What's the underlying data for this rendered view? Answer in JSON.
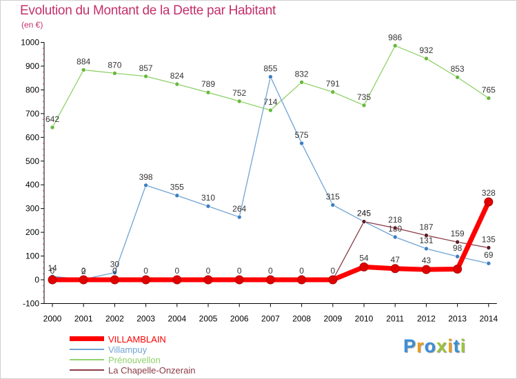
{
  "chart_data": {
    "type": "line",
    "title": "Evolution du Montant de la Dette par Habitant",
    "unit_label": "(en €)",
    "x": [
      "2000",
      "2001",
      "2002",
      "2003",
      "2004",
      "2005",
      "2006",
      "2007",
      "2008",
      "2009",
      "2010",
      "2011",
      "2012",
      "2013",
      "2014"
    ],
    "ylim": [
      -100,
      1000
    ],
    "yticks": [
      -100,
      0,
      100,
      200,
      300,
      400,
      500,
      600,
      700,
      800,
      900,
      1000
    ],
    "grid": false,
    "legend_position": "bottom-left",
    "series": [
      {
        "name": "Prénouvellon",
        "color": "#8fd16a",
        "marker": "#68b83c",
        "values": [
          642,
          884,
          870,
          857,
          824,
          789,
          752,
          714,
          832,
          791,
          735,
          986,
          932,
          853,
          765
        ],
        "labels": [
          "642",
          "884",
          "870",
          "857",
          "824",
          "789",
          "752",
          "714",
          "832",
          "791",
          "735",
          "986",
          "932",
          "853",
          "765"
        ]
      },
      {
        "name": "Villampuy",
        "color": "#6fa3d4",
        "marker": "#3c7fc1",
        "values": [
          14,
          2,
          30,
          398,
          355,
          310,
          264,
          855,
          575,
          315,
          245,
          180,
          131,
          98,
          69
        ],
        "segments": [
          [
            0,
            6
          ],
          [
            6,
            14
          ]
        ],
        "labels": [
          "14",
          "2",
          "30",
          "398",
          "355",
          "310",
          "264",
          "855",
          "575",
          "315",
          "245",
          "180",
          "131",
          "98",
          "69"
        ]
      },
      {
        "name": "La Chapelle-Onzerain",
        "color": "#8a3a46",
        "marker": "#5c1a22",
        "values": [
          0,
          0,
          0,
          0,
          0,
          0,
          0,
          0,
          0,
          0,
          245,
          218,
          187,
          159,
          135
        ],
        "labels": [
          "",
          "",
          "",
          "",
          "",
          "",
          "",
          "",
          "",
          "",
          "245",
          "218",
          "187",
          "159",
          "135"
        ]
      },
      {
        "name": "VILLAMBLAIN",
        "color": "#ff0000",
        "marker": "#e00000",
        "values": [
          0,
          0,
          0,
          0,
          0,
          0,
          0,
          0,
          0,
          0,
          54,
          47,
          43,
          45,
          328
        ],
        "labels": [
          "0",
          "0",
          "0",
          "0",
          "0",
          "0",
          "0",
          "0",
          "0",
          "0",
          "54",
          "47",
          "43",
          "",
          "328"
        ]
      }
    ]
  },
  "legend": {
    "items": [
      {
        "label": "VILLAMBLAIN",
        "color": "#ff0000"
      },
      {
        "label": "Villampuy",
        "color": "#6fa3d4"
      },
      {
        "label": "Prénouvellon",
        "color": "#8fd16a"
      },
      {
        "label": "La Chapelle-Onzerain",
        "color": "#8a3a46"
      }
    ]
  },
  "logo": {
    "letters": [
      "P",
      "r",
      "o",
      "x",
      "i",
      "t",
      "i"
    ],
    "colors": [
      "#3a8fd8",
      "#e8a020",
      "#3a8fd8",
      "#9bc43a",
      "#e8a020",
      "#3a8fd8",
      "#9bc43a"
    ]
  }
}
